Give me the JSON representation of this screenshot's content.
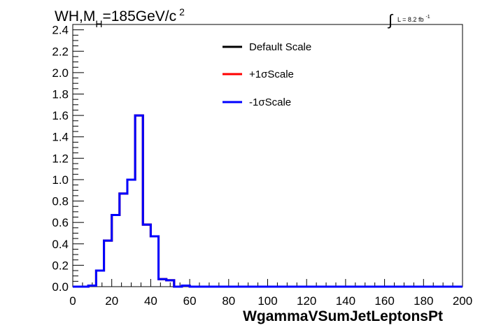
{
  "header": {
    "title": "WH,M",
    "title_sub": "H",
    "title_rest": "=185GeV/c",
    "title_sup": "2",
    "lumi_integral": "∫",
    "lumi_text": "L = 8.2 fb",
    "lumi_sup": "-1"
  },
  "legend": {
    "items": [
      {
        "label": "Default Scale",
        "color": "#000000"
      },
      {
        "label": "+1σScale",
        "color": "#ff0000"
      },
      {
        "label": "-1σScale",
        "color": "#0000ff"
      }
    ]
  },
  "chart_data": {
    "type": "line",
    "drawstyle": "steps",
    "xlabel": "WgammaVSumJetLeptonsPt",
    "ylabel": "",
    "xlim": [
      0,
      200
    ],
    "ylim": [
      0,
      2.45
    ],
    "x_ticks": [
      0,
      20,
      40,
      60,
      80,
      100,
      120,
      140,
      160,
      180,
      200
    ],
    "x_tick_labels": [
      "0",
      "20",
      "40",
      "60",
      "80",
      "100",
      "120",
      "140",
      "160",
      "180",
      "200"
    ],
    "y_ticks": [
      0,
      0.2,
      0.4,
      0.6,
      0.8,
      1.0,
      1.2,
      1.4,
      1.6,
      1.8,
      2.0,
      2.2,
      2.4
    ],
    "y_tick_labels": [
      "0.0",
      "0.2",
      "0.4",
      "0.6",
      "0.8",
      "1.0",
      "1.2",
      "1.4",
      "1.6",
      "1.8",
      "2.0",
      "2.2",
      "2.4"
    ],
    "bin_edges": [
      0,
      4,
      8,
      12,
      16,
      20,
      24,
      28,
      32,
      36,
      40,
      44,
      48,
      52,
      56,
      60,
      64,
      68,
      72,
      76,
      80,
      84,
      88,
      92,
      96,
      100,
      104,
      108,
      112,
      116,
      120,
      124,
      128,
      132,
      136,
      140,
      144,
      148,
      152,
      156,
      160,
      164,
      168,
      172,
      176,
      180,
      184,
      188,
      192,
      196,
      200
    ],
    "series": [
      {
        "name": "Default Scale",
        "color": "#000000",
        "values": [
          0,
          0,
          0.01,
          0.15,
          0.43,
          0.67,
          0.87,
          1.0,
          1.6,
          0.58,
          0.47,
          0.07,
          0.06,
          0,
          0.01,
          0,
          0,
          0,
          0,
          0,
          0,
          0,
          0,
          0,
          0,
          0,
          0,
          0,
          0,
          0,
          0,
          0,
          0,
          0,
          0,
          0,
          0,
          0,
          0,
          0,
          0,
          0,
          0,
          0,
          0,
          0,
          0,
          0,
          0,
          0
        ]
      },
      {
        "name": "+1σScale",
        "color": "#ff0000",
        "values": [
          0,
          0,
          0.01,
          0.15,
          0.43,
          0.67,
          0.87,
          1.0,
          1.6,
          0.58,
          0.47,
          0.07,
          0.06,
          0,
          0.01,
          0,
          0,
          0,
          0,
          0,
          0,
          0,
          0,
          0,
          0,
          0,
          0,
          0,
          0,
          0,
          0,
          0,
          0,
          0,
          0,
          0,
          0,
          0,
          0,
          0,
          0,
          0,
          0,
          0,
          0,
          0,
          0,
          0,
          0,
          0
        ]
      },
      {
        "name": "-1σScale",
        "color": "#0000ff",
        "values": [
          0,
          0,
          0.01,
          0.15,
          0.43,
          0.67,
          0.87,
          1.0,
          1.6,
          0.58,
          0.47,
          0.07,
          0.06,
          0,
          0.01,
          0,
          0,
          0,
          0,
          0,
          0,
          0,
          0,
          0,
          0,
          0,
          0,
          0,
          0,
          0,
          0,
          0,
          0,
          0,
          0,
          0,
          0,
          0,
          0,
          0,
          0,
          0,
          0,
          0,
          0,
          0,
          0,
          0,
          0,
          0
        ]
      }
    ]
  }
}
